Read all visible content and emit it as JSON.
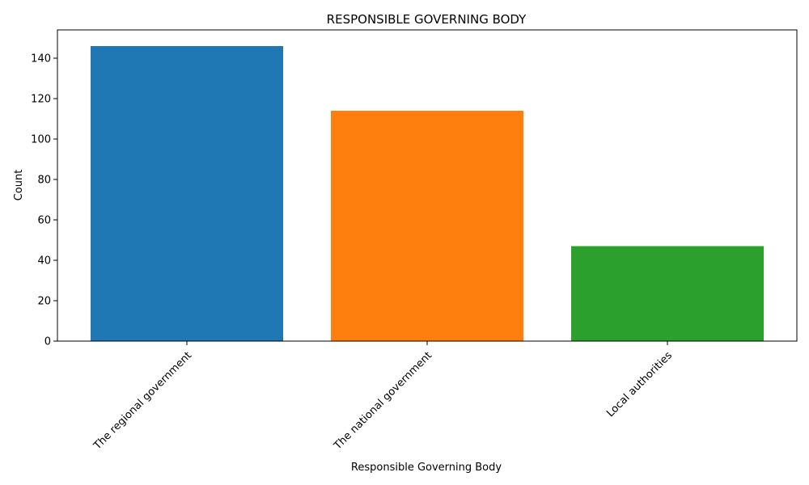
{
  "chart_data": {
    "type": "bar",
    "title": "RESPONSIBLE GOVERNING BODY",
    "xlabel": "Responsible Governing Body",
    "ylabel": "Count",
    "categories": [
      "The regional government",
      "The national government",
      "Local authorities"
    ],
    "values": [
      146,
      114,
      47
    ],
    "colors": [
      "#1f77b4",
      "#ff7f0e",
      "#2ca02c"
    ],
    "ylim": [
      0,
      154
    ],
    "yticks": [
      0,
      20,
      40,
      60,
      80,
      100,
      120,
      140
    ],
    "grid": false,
    "legend": "none"
  }
}
